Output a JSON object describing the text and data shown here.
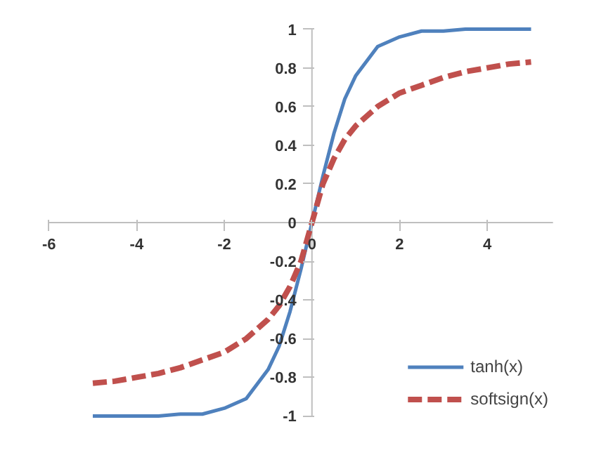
{
  "chart_data": {
    "type": "line",
    "x": [
      -5,
      -4.5,
      -4,
      -3.5,
      -3,
      -2.5,
      -2,
      -1.5,
      -1,
      -0.75,
      -0.5,
      -0.25,
      0,
      0.25,
      0.5,
      0.75,
      1,
      1.5,
      2,
      2.5,
      3,
      3.5,
      4,
      4.5,
      5
    ],
    "series": [
      {
        "name": "tanh(x)",
        "color": "#4f81bd",
        "line_style": "solid",
        "values": [
          -1.0,
          -1.0,
          -1.0,
          -1.0,
          -0.99,
          -0.99,
          -0.96,
          -0.91,
          -0.76,
          -0.64,
          -0.46,
          -0.24,
          0,
          0.24,
          0.46,
          0.64,
          0.76,
          0.91,
          0.96,
          0.99,
          0.99,
          1.0,
          1.0,
          1.0,
          1.0
        ]
      },
      {
        "name": "softsign(x)",
        "color": "#c0504d",
        "line_style": "dashed",
        "values": [
          -0.83,
          -0.82,
          -0.8,
          -0.78,
          -0.75,
          -0.71,
          -0.67,
          -0.6,
          -0.5,
          -0.43,
          -0.33,
          -0.2,
          0,
          0.2,
          0.33,
          0.43,
          0.5,
          0.6,
          0.67,
          0.71,
          0.75,
          0.78,
          0.8,
          0.82,
          0.83
        ]
      }
    ],
    "xlim": [
      -6,
      5.5
    ],
    "ylim": [
      -1,
      1
    ],
    "xticks": [
      -6,
      -4,
      -2,
      0,
      2,
      4
    ],
    "yticks": [
      -1,
      -0.8,
      -0.6,
      -0.4,
      -0.2,
      0,
      0.2,
      0.4,
      0.6,
      0.8,
      1
    ],
    "grid": false,
    "legend": "bottom right",
    "marker": "none"
  }
}
